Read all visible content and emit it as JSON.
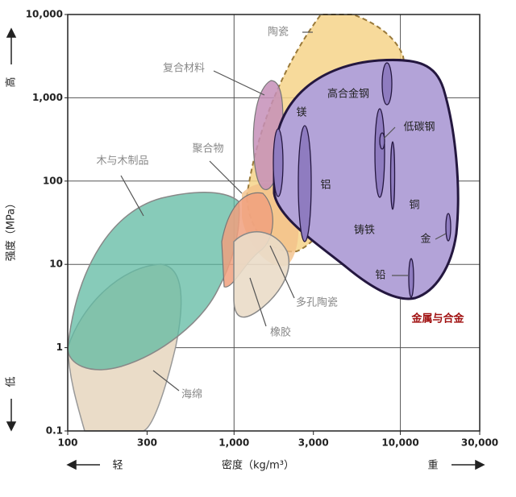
{
  "chart_data": {
    "type": "region",
    "xlabel": "密度（kg/m³）",
    "ylabel": "强度（MPa）",
    "x_low": "轻",
    "x_high": "重",
    "y_high": "高",
    "y_low": "低",
    "xscale": "log",
    "yscale": "log",
    "grid": true,
    "xlim": [
      100,
      30000
    ],
    "ylim": [
      0.1,
      10000
    ],
    "xticks": [
      100,
      300,
      {
        "value": 1000,
        "label": "1,000"
      },
      {
        "value": 3000,
        "label": "3,000"
      },
      {
        "value": 10000,
        "label": "10,000"
      },
      {
        "value": 30000,
        "label": "30,000"
      }
    ],
    "yticks": [
      0.1,
      1,
      10,
      100,
      {
        "value": 1000,
        "label": "1,000"
      },
      {
        "value": 10000,
        "label": "10,000"
      }
    ],
    "regions": [
      {
        "name": "陶瓷"
      },
      {
        "name": "复合材料"
      },
      {
        "name": "木与木制品"
      },
      {
        "name": "聚合物"
      },
      {
        "name": "多孔陶瓷"
      },
      {
        "name": "橡胶"
      },
      {
        "name": "海绵"
      },
      {
        "name": "金属与合金"
      }
    ],
    "metals": [
      {
        "name": "镁"
      },
      {
        "name": "铝"
      },
      {
        "name": "高合金钢"
      },
      {
        "name": "低碳钢"
      },
      {
        "name": "铸铁"
      },
      {
        "name": "铜"
      },
      {
        "name": "金"
      },
      {
        "name": "铅"
      }
    ]
  }
}
